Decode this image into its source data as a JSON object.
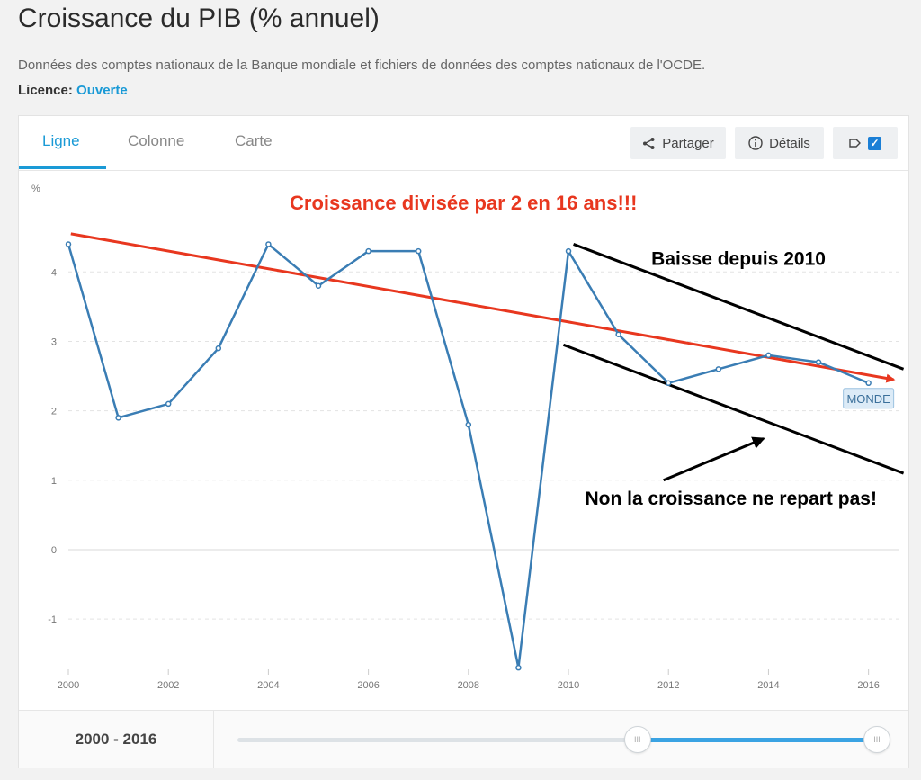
{
  "page": {
    "title": "Croissance du PIB (% annuel)",
    "source": "Données des comptes nationaux de la Banque mondiale et fichiers de données des comptes nationaux de l'OCDE.",
    "licence_label": "Licence:",
    "licence_value": "Ouverte"
  },
  "tabs": [
    {
      "label": "Ligne",
      "active": true
    },
    {
      "label": "Colonne",
      "active": false
    },
    {
      "label": "Carte",
      "active": false
    }
  ],
  "toolbar": {
    "share_label": "Partager",
    "details_label": "Détails",
    "labels_toggle_checked": true
  },
  "chart_data": {
    "type": "line",
    "y_unit_label": "%",
    "x": [
      2000,
      2001,
      2002,
      2003,
      2004,
      2005,
      2006,
      2007,
      2008,
      2009,
      2010,
      2011,
      2012,
      2013,
      2014,
      2015,
      2016
    ],
    "series": [
      {
        "name": "MONDE",
        "color": "#3a7db4",
        "values": [
          4.4,
          1.9,
          2.1,
          2.9,
          4.4,
          3.8,
          4.3,
          4.3,
          1.8,
          -1.7,
          4.3,
          3.1,
          2.4,
          2.6,
          2.8,
          2.7,
          2.4
        ]
      }
    ],
    "x_ticks": [
      "2000",
      "2002",
      "2004",
      "2006",
      "2008",
      "2010",
      "2012",
      "2014",
      "2016"
    ],
    "y_ticks": [
      "4",
      "3",
      "2",
      "1",
      "0",
      "-1"
    ],
    "ylim": [
      -1.75,
      4.95
    ],
    "xlim": [
      2000,
      2016.6
    ],
    "grid": true,
    "annotations": {
      "headline": "Croissance divisée par 2 en 16 ans!!!",
      "decline": "Baisse depuis 2010",
      "note": "Non la croissance ne repart pas!",
      "headline_color": "#e8371f",
      "trend_color": "#e8371f"
    }
  },
  "footer": {
    "range_label": "2000 - 2016",
    "slider_start_year": 2010,
    "slider_end_year": 2016
  }
}
